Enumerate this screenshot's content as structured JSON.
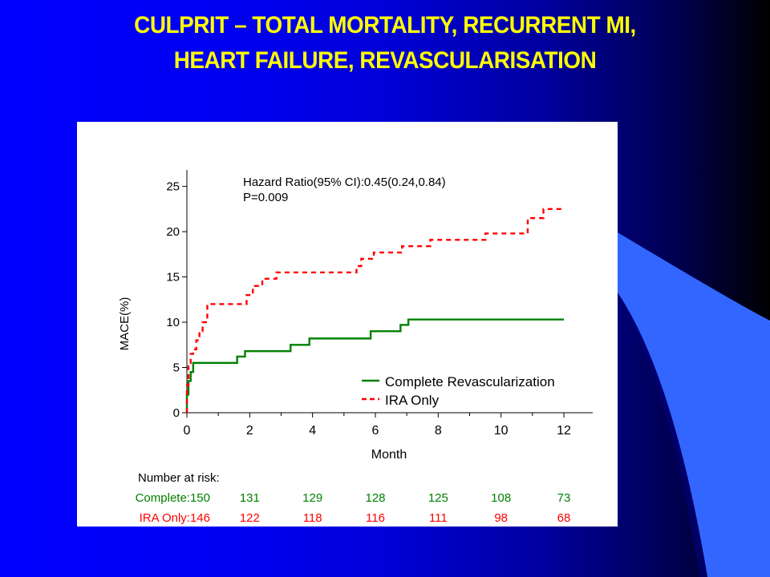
{
  "slide": {
    "title_line1": "CULPRIT – TOTAL MORTALITY, RECURRENT MI,",
    "title_line2": "HEART FAILURE, REVASCULARISATION",
    "colors": {
      "title": "#ffff00",
      "background": "#0000ff",
      "accent": "#3366ff"
    }
  },
  "chart_data": {
    "type": "line",
    "step": true,
    "xlabel": "Month",
    "ylabel": "MACE(%)",
    "xlim": [
      0,
      12
    ],
    "ylim": [
      0,
      27
    ],
    "xticks": [
      0,
      2,
      4,
      6,
      8,
      10,
      12
    ],
    "yticks": [
      0,
      5,
      10,
      15,
      20,
      25
    ],
    "annotation": [
      "Hazard Ratio(95% CI):0.45(0.24,0.84)",
      "P=0.009"
    ],
    "legend_position": "bottom-right",
    "series": [
      {
        "name": "Complete Revascularization",
        "color": "#008000",
        "style": "solid",
        "points": [
          [
            0,
            0
          ],
          [
            0,
            2.0
          ],
          [
            0.05,
            3.5
          ],
          [
            0.12,
            4.5
          ],
          [
            0.2,
            5.5
          ],
          [
            1.6,
            6.2
          ],
          [
            1.85,
            6.8
          ],
          [
            3.3,
            7.5
          ],
          [
            3.9,
            8.2
          ],
          [
            5.85,
            9.0
          ],
          [
            6.8,
            9.7
          ],
          [
            7.05,
            10.3
          ],
          [
            12,
            10.3
          ]
        ]
      },
      {
        "name": "IRA Only",
        "color": "#ff0000",
        "style": "dashed",
        "points": [
          [
            0,
            0
          ],
          [
            0,
            3.0
          ],
          [
            0.05,
            5.5
          ],
          [
            0.12,
            6.5
          ],
          [
            0.2,
            7.0
          ],
          [
            0.3,
            8.0
          ],
          [
            0.4,
            9.0
          ],
          [
            0.5,
            10.0
          ],
          [
            0.65,
            12.0
          ],
          [
            1.9,
            13.0
          ],
          [
            2.1,
            14.0
          ],
          [
            2.4,
            14.8
          ],
          [
            2.85,
            15.5
          ],
          [
            5.4,
            16.2
          ],
          [
            5.55,
            17.0
          ],
          [
            5.95,
            17.7
          ],
          [
            6.85,
            18.4
          ],
          [
            7.75,
            19.1
          ],
          [
            9.5,
            19.8
          ],
          [
            10.85,
            21.5
          ],
          [
            11.35,
            22.5
          ],
          [
            12,
            22.5
          ]
        ]
      }
    ],
    "risk_table": {
      "title": "Number at risk:",
      "rows": [
        {
          "label": "Complete:150",
          "color": "#008000",
          "values": [
            131,
            129,
            128,
            125,
            108,
            73
          ]
        },
        {
          "label": "IRA Only:146",
          "color": "#ff0000",
          "values": [
            122,
            118,
            116,
            111,
            98,
            68
          ]
        }
      ]
    }
  }
}
